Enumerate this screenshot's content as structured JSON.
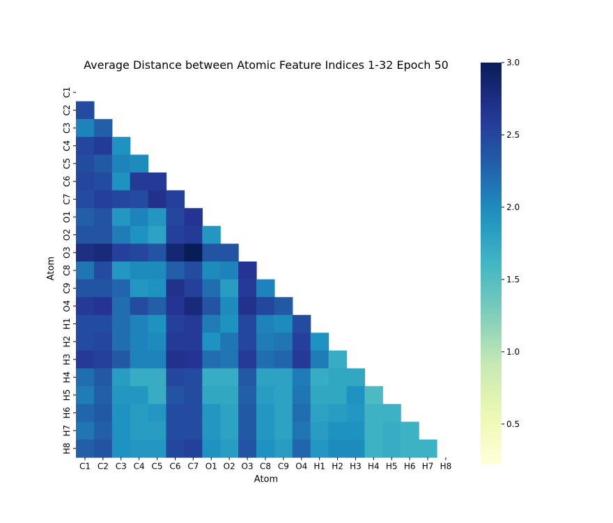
{
  "chart_data": {
    "type": "heatmap",
    "title": "Average Distance between Atomic Feature Indices 1-32 Epoch 50",
    "xlabel": "Atom",
    "ylabel": "Atom",
    "labels": [
      "C1",
      "C2",
      "C3",
      "C4",
      "C5",
      "C6",
      "C7",
      "O1",
      "O2",
      "O3",
      "C8",
      "C9",
      "O4",
      "H1",
      "H2",
      "H3",
      "H4",
      "H5",
      "H6",
      "H7",
      "H8"
    ],
    "mask": "upper-triangle-including-diagonal",
    "colormap": "YlGnBu",
    "vmin": 0.22,
    "vmax": 3.0,
    "colorbar_ticks": [
      0.5,
      1.0,
      1.5,
      2.0,
      2.5,
      3.0
    ],
    "colorbar_tick_labels": [
      "0.5",
      "1.0",
      "1.5",
      "2.0",
      "2.5",
      "3.0"
    ],
    "values": [
      [],
      [
        2.45
      ],
      [
        2.05,
        2.3
      ],
      [
        2.5,
        2.6,
        1.95
      ],
      [
        2.45,
        2.35,
        2.05,
        2.0
      ],
      [
        2.5,
        2.45,
        1.95,
        2.6,
        2.6
      ],
      [
        2.45,
        2.55,
        2.5,
        2.45,
        2.7,
        2.55
      ],
      [
        2.3,
        2.4,
        1.9,
        2.05,
        1.9,
        2.5,
        2.65
      ],
      [
        2.4,
        2.4,
        2.1,
        1.95,
        1.8,
        2.55,
        2.6,
        1.9
      ],
      [
        2.75,
        2.8,
        2.55,
        2.5,
        2.4,
        2.85,
        3.0,
        2.4,
        2.4
      ],
      [
        2.15,
        2.45,
        1.9,
        2.0,
        2.0,
        2.3,
        2.45,
        2.0,
        2.05,
        2.65
      ],
      [
        2.4,
        2.4,
        2.25,
        1.9,
        1.95,
        2.7,
        2.55,
        2.2,
        1.85,
        2.6,
        2.05
      ],
      [
        2.6,
        2.65,
        2.2,
        2.45,
        2.3,
        2.65,
        2.8,
        2.4,
        2.0,
        2.7,
        2.5,
        2.35
      ],
      [
        2.45,
        2.45,
        2.2,
        2.05,
        1.95,
        2.55,
        2.6,
        2.1,
        1.95,
        2.5,
        2.05,
        2.0,
        2.45
      ],
      [
        2.45,
        2.5,
        2.2,
        2.05,
        2.0,
        2.6,
        2.6,
        1.95,
        2.15,
        2.5,
        2.1,
        2.15,
        2.55,
        1.95
      ],
      [
        2.6,
        2.55,
        2.35,
        2.05,
        2.05,
        2.7,
        2.65,
        2.2,
        2.15,
        2.6,
        2.2,
        2.25,
        2.6,
        2.1,
        1.7
      ],
      [
        2.2,
        2.35,
        1.85,
        1.7,
        1.7,
        2.5,
        2.45,
        1.7,
        1.7,
        2.35,
        1.8,
        1.8,
        2.1,
        1.7,
        1.75,
        1.75
      ],
      [
        2.1,
        2.3,
        1.9,
        1.9,
        1.7,
        2.4,
        2.45,
        1.75,
        1.75,
        2.3,
        1.85,
        1.8,
        2.15,
        1.75,
        1.75,
        1.95,
        1.55
      ],
      [
        2.25,
        2.35,
        1.95,
        1.85,
        1.9,
        2.45,
        2.45,
        1.9,
        1.8,
        2.35,
        1.9,
        1.8,
        2.2,
        1.8,
        1.85,
        1.9,
        1.65,
        1.65
      ],
      [
        2.15,
        2.3,
        1.95,
        1.85,
        1.85,
        2.45,
        2.45,
        1.9,
        1.8,
        2.35,
        1.9,
        1.8,
        2.15,
        1.85,
        1.95,
        1.95,
        1.65,
        1.7,
        1.65
      ],
      [
        2.3,
        2.4,
        1.95,
        1.9,
        1.9,
        2.5,
        2.55,
        1.95,
        1.85,
        2.4,
        1.95,
        1.85,
        2.25,
        1.9,
        2.0,
        2.0,
        1.65,
        1.7,
        1.65,
        1.65
      ]
    ],
    "grid": false,
    "legend": "none (colorbar on right)"
  }
}
